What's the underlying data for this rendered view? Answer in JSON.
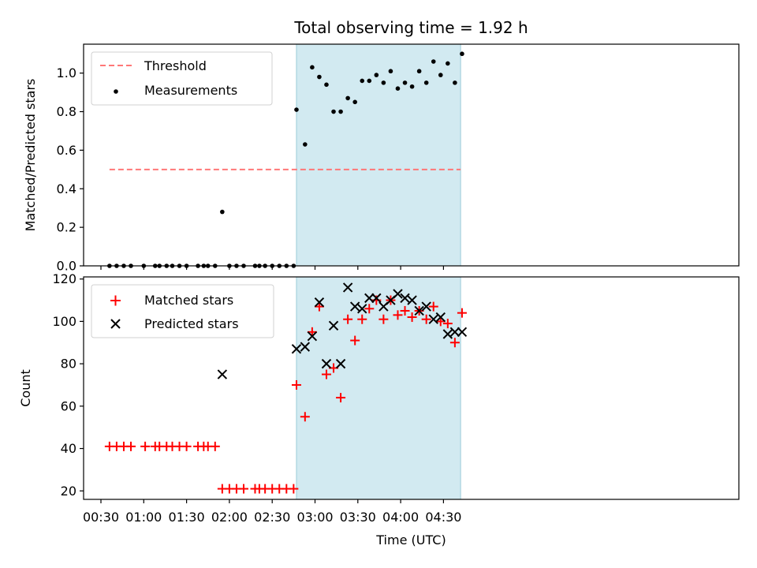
{
  "chart_data": {
    "type": "scatter",
    "title": "Total observing time = 1.92 h",
    "xlabel": "Time (UTC)",
    "xticks": [
      "00:30",
      "01:00",
      "01:30",
      "02:00",
      "02:30",
      "03:00",
      "03:30",
      "04:00",
      "04:30"
    ],
    "shaded_interval": {
      "start": "02:47",
      "end": "04:42",
      "color": "#add8e6"
    },
    "panels": [
      {
        "ylabel": "Matched/Predicted stars",
        "ylim": [
          0,
          1.15
        ],
        "yticks": [
          "0.0",
          "0.2",
          "0.4",
          "0.6",
          "0.8",
          "1.0"
        ],
        "legend_position": "upper-left",
        "series": [
          {
            "name": "Threshold",
            "style": "dashed-line",
            "color": "#ff7777",
            "x": [
              "00:36",
              "04:42"
            ],
            "y": [
              0.5,
              0.5
            ]
          },
          {
            "name": "Measurements",
            "style": "dot",
            "color": "#000000",
            "x": [
              "00:36",
              "00:41",
              "00:46",
              "00:51",
              "01:00",
              "01:08",
              "01:11",
              "01:16",
              "01:20",
              "01:25",
              "01:30",
              "01:38",
              "01:42",
              "01:45",
              "01:50",
              "01:55",
              "02:00",
              "02:05",
              "02:10",
              "02:18",
              "02:21",
              "02:25",
              "02:30",
              "02:35",
              "02:40",
              "02:45",
              "02:47",
              "02:53",
              "02:58",
              "03:03",
              "03:08",
              "03:13",
              "03:18",
              "03:23",
              "03:28",
              "03:33",
              "03:38",
              "03:43",
              "03:48",
              "03:53",
              "03:58",
              "04:03",
              "04:08",
              "04:13",
              "04:18",
              "04:23",
              "04:28",
              "04:33",
              "04:38",
              "04:43"
            ],
            "y": [
              0,
              0,
              0,
              0,
              0,
              0,
              0,
              0,
              0,
              0,
              0,
              0,
              0,
              0,
              0,
              0.28,
              0,
              0,
              0,
              0,
              0,
              0,
              0,
              0,
              0,
              0,
              0.81,
              0.63,
              1.03,
              0.98,
              0.94,
              0.8,
              0.8,
              0.87,
              0.85,
              0.96,
              0.96,
              0.99,
              0.95,
              1.01,
              0.92,
              0.95,
              0.93,
              1.01,
              0.95,
              1.06,
              0.99,
              1.05,
              0.95,
              1.1
            ]
          }
        ]
      },
      {
        "ylabel": "Count",
        "ylim": [
          16,
          121
        ],
        "yticks": [
          "20",
          "40",
          "60",
          "80",
          "100",
          "120"
        ],
        "legend_position": "upper-left",
        "series": [
          {
            "name": "Matched stars",
            "marker": "plus",
            "color": "#ff0000",
            "x": [
              "00:36",
              "00:41",
              "00:46",
              "00:51",
              "01:01",
              "01:08",
              "01:11",
              "01:16",
              "01:20",
              "01:25",
              "01:30",
              "01:38",
              "01:42",
              "01:45",
              "01:50",
              "01:55",
              "02:00",
              "02:05",
              "02:10",
              "02:18",
              "02:21",
              "02:25",
              "02:30",
              "02:35",
              "02:40",
              "02:45",
              "02:47",
              "02:53",
              "02:58",
              "03:03",
              "03:08",
              "03:13",
              "03:18",
              "03:23",
              "03:28",
              "03:33",
              "03:38",
              "03:43",
              "03:48",
              "03:53",
              "03:58",
              "04:03",
              "04:08",
              "04:13",
              "04:18",
              "04:23",
              "04:28",
              "04:33",
              "04:38",
              "04:43"
            ],
            "y": [
              41,
              41,
              41,
              41,
              41,
              41,
              41,
              41,
              41,
              41,
              41,
              41,
              41,
              41,
              41,
              21,
              21,
              21,
              21,
              21,
              21,
              21,
              21,
              21,
              21,
              21,
              70,
              55,
              95,
              107,
              75,
              78,
              64,
              101,
              91,
              101,
              106,
              110,
              101,
              110,
              103,
              105,
              102,
              105,
              101,
              107,
              100,
              99,
              90,
              104
            ]
          },
          {
            "name": "Predicted stars",
            "marker": "x",
            "color": "#000000",
            "x": [
              "01:55",
              "02:47",
              "02:53",
              "02:58",
              "03:03",
              "03:08",
              "03:13",
              "03:18",
              "03:23",
              "03:28",
              "03:33",
              "03:38",
              "03:43",
              "03:48",
              "03:53",
              "03:58",
              "04:03",
              "04:08",
              "04:13",
              "04:18",
              "04:23",
              "04:28",
              "04:33",
              "04:38",
              "04:43"
            ],
            "y": [
              75,
              87,
              88,
              93,
              109,
              80,
              98,
              80,
              116,
              107,
              106,
              111,
              111,
              107,
              110,
              113,
              111,
              110,
              105,
              107,
              101,
              102,
              94,
              95,
              95
            ]
          }
        ]
      }
    ]
  }
}
